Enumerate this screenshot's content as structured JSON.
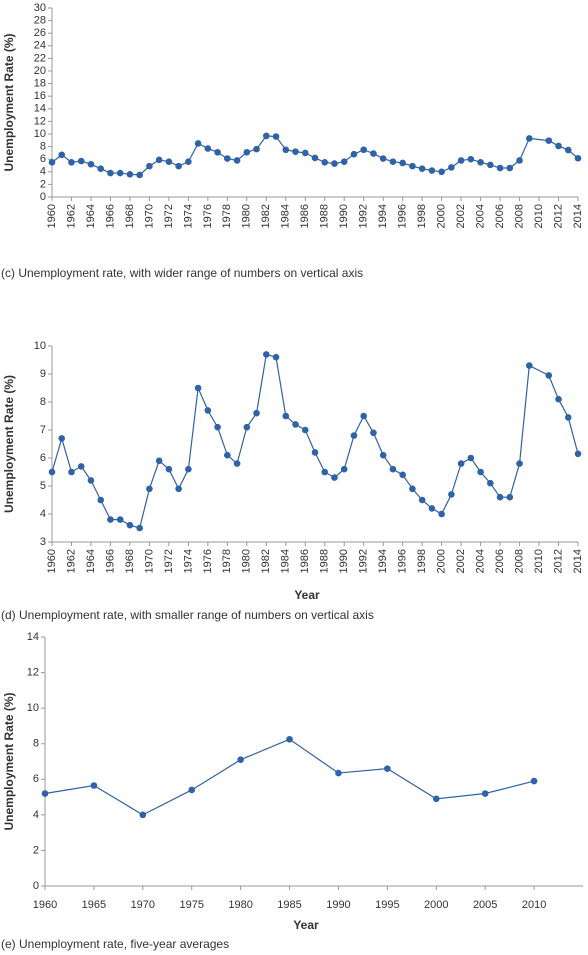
{
  "chart_data": [
    {
      "type": "line",
      "caption": "(c) Unemployment rate, with wider range of numbers on vertical axis",
      "ylabel": "Unemployment Rate (%)",
      "color": "#2f62a6",
      "x": [
        1960,
        1961,
        1962,
        1963,
        1964,
        1965,
        1966,
        1967,
        1968,
        1969,
        1970,
        1971,
        1972,
        1973,
        1974,
        1975,
        1976,
        1977,
        1978,
        1979,
        1980,
        1981,
        1982,
        1983,
        1984,
        1985,
        1986,
        1987,
        1988,
        1989,
        1990,
        1991,
        1992,
        1993,
        1994,
        1995,
        1996,
        1997,
        1998,
        1999,
        2000,
        2001,
        2002,
        2003,
        2004,
        2005,
        2006,
        2007,
        2008,
        2009,
        2011,
        2012,
        2013,
        2014
      ],
      "values": [
        5.5,
        6.7,
        5.5,
        5.7,
        5.2,
        4.5,
        3.8,
        3.8,
        3.6,
        3.5,
        4.9,
        5.9,
        5.6,
        4.9,
        5.6,
        8.5,
        7.7,
        7.1,
        6.1,
        5.8,
        7.1,
        7.6,
        9.7,
        9.6,
        7.5,
        7.2,
        7.0,
        6.2,
        5.5,
        5.3,
        5.6,
        6.8,
        7.5,
        6.9,
        6.1,
        5.6,
        5.4,
        4.9,
        4.5,
        4.2,
        4.0,
        4.7,
        5.8,
        6.0,
        5.5,
        5.1,
        4.6,
        4.6,
        5.8,
        9.3,
        8.95,
        8.1,
        7.45,
        6.15
      ],
      "xlim": [
        1960,
        2014
      ],
      "xticks": [
        1960,
        1962,
        1964,
        1966,
        1968,
        1970,
        1972,
        1974,
        1976,
        1978,
        1980,
        1982,
        1984,
        1986,
        1988,
        1990,
        1992,
        1994,
        1996,
        1998,
        2000,
        2002,
        2004,
        2006,
        2008,
        2010,
        2012,
        2014
      ],
      "ylim": [
        0,
        30
      ],
      "yticks": [
        0,
        2,
        4,
        6,
        8,
        10,
        12,
        14,
        16,
        18,
        20,
        22,
        24,
        26,
        28,
        30
      ]
    },
    {
      "type": "line",
      "caption": "(d) Unemployment rate, with smaller range of numbers on vertical axis",
      "xlabel": "Year",
      "ylabel": "Unemployment Rate (%)",
      "color": "#2f62a6",
      "x": [
        1960,
        1961,
        1962,
        1963,
        1964,
        1965,
        1966,
        1967,
        1968,
        1969,
        1970,
        1971,
        1972,
        1973,
        1974,
        1975,
        1976,
        1977,
        1978,
        1979,
        1980,
        1981,
        1982,
        1983,
        1984,
        1985,
        1986,
        1987,
        1988,
        1989,
        1990,
        1991,
        1992,
        1993,
        1994,
        1995,
        1996,
        1997,
        1998,
        1999,
        2000,
        2001,
        2002,
        2003,
        2004,
        2005,
        2006,
        2007,
        2008,
        2009,
        2011,
        2012,
        2013,
        2014
      ],
      "values": [
        5.5,
        6.7,
        5.5,
        5.7,
        5.2,
        4.5,
        3.8,
        3.8,
        3.6,
        3.5,
        4.9,
        5.9,
        5.6,
        4.9,
        5.6,
        8.5,
        7.7,
        7.1,
        6.1,
        5.8,
        7.1,
        7.6,
        9.7,
        9.6,
        7.5,
        7.2,
        7.0,
        6.2,
        5.5,
        5.3,
        5.6,
        6.8,
        7.5,
        6.9,
        6.1,
        5.6,
        5.4,
        4.9,
        4.5,
        4.2,
        4.0,
        4.7,
        5.8,
        6.0,
        5.5,
        5.1,
        4.6,
        4.6,
        5.8,
        9.3,
        8.95,
        8.1,
        7.45,
        6.15
      ],
      "xlim": [
        1960,
        2014
      ],
      "xticks": [
        1960,
        1962,
        1964,
        1966,
        1968,
        1970,
        1972,
        1974,
        1976,
        1978,
        1980,
        1982,
        1984,
        1986,
        1988,
        1990,
        1992,
        1994,
        1996,
        1998,
        2000,
        2002,
        2004,
        2006,
        2008,
        2010,
        2012,
        2014
      ],
      "ylim": [
        3,
        10
      ],
      "yticks": [
        3,
        4,
        5,
        6,
        7,
        8,
        9,
        10
      ]
    },
    {
      "type": "line",
      "caption": "(e) Unemployment rate, five-year averages",
      "xlabel": "Year",
      "ylabel": "Unemployment Rate (%)",
      "color": "#2f62a6",
      "x": [
        1960,
        1965,
        1970,
        1975,
        1980,
        1985,
        1990,
        1995,
        2000,
        2005,
        2010
      ],
      "values": [
        5.2,
        5.65,
        4.0,
        5.4,
        7.1,
        8.25,
        6.35,
        6.6,
        4.9,
        5.2,
        5.9
      ],
      "xlim": [
        1960,
        2015
      ],
      "xticks": [
        1960,
        1965,
        1970,
        1975,
        1980,
        1985,
        1990,
        1995,
        2000,
        2005,
        2010
      ],
      "ylim": [
        0,
        14
      ],
      "yticks": [
        0,
        2,
        4,
        6,
        8,
        10,
        12,
        14
      ]
    }
  ]
}
